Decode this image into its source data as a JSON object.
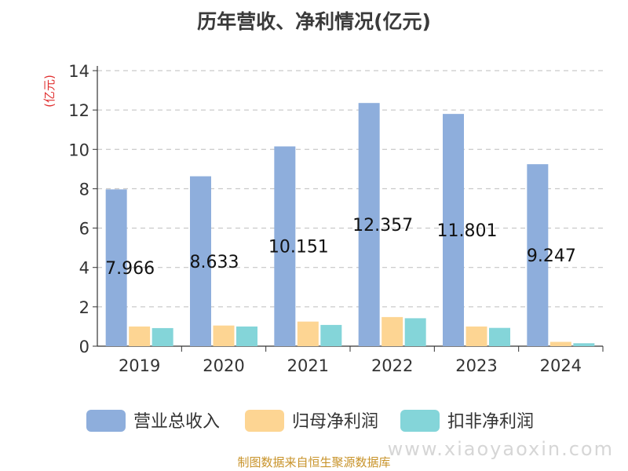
{
  "chart_data": {
    "type": "bar",
    "title": "历年营收、净利情况(亿元)",
    "ylabel": "(亿元)",
    "xlabel": "",
    "categories": [
      "2019",
      "2020",
      "2021",
      "2022",
      "2023",
      "2024"
    ],
    "ylim": [
      0,
      14
    ],
    "yticks": [
      0,
      2,
      4,
      6,
      8,
      10,
      12,
      14
    ],
    "grid": "horizontal-dashed",
    "legend_position": "bottom",
    "series": [
      {
        "name": "营业总收入",
        "color": "#8eaedc",
        "values": [
          7.966,
          8.633,
          10.151,
          12.357,
          11.801,
          9.247
        ],
        "show_labels": true
      },
      {
        "name": "归母净利润",
        "color": "#fdd593",
        "values": [
          1.0,
          1.05,
          1.25,
          1.48,
          1.0,
          0.22
        ],
        "show_labels": false
      },
      {
        "name": "扣非净利润",
        "color": "#84d5d9",
        "values": [
          0.92,
          1.0,
          1.08,
          1.42,
          0.93,
          0.15
        ],
        "show_labels": false
      }
    ]
  },
  "footer": {
    "source": "制图数据来自恒生聚源数据库",
    "watermark": "www.xiaoyaoxin.com"
  }
}
